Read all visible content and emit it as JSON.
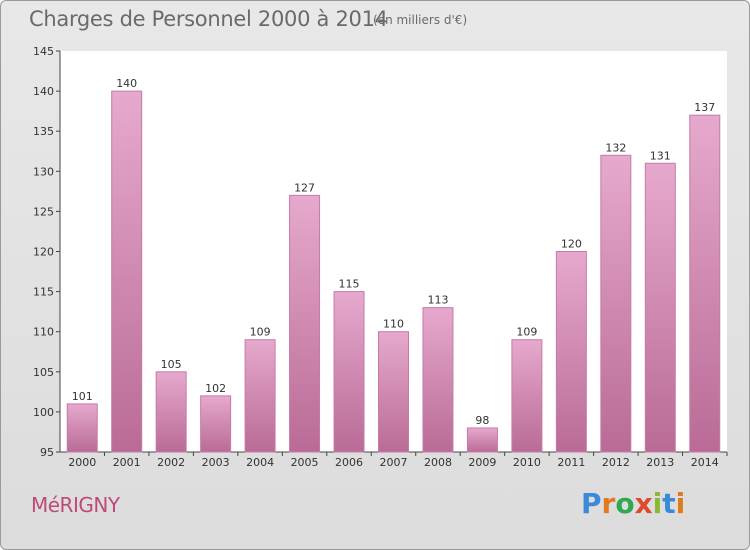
{
  "title": "Charges de Personnel 2000 à 2014",
  "subtitle": "(en milliers d'€)",
  "city": "MéRIGNY",
  "logo": {
    "letters": [
      "P",
      "r",
      "o",
      "x",
      "i",
      "t",
      "i"
    ],
    "colors": [
      "#3b8ad9",
      "#e07a1f",
      "#2fa84f",
      "#e04a2a",
      "#8ab82f",
      "#3b8ad9",
      "#e07a1f"
    ]
  },
  "colors": {
    "bar_fill_top": "#e6a9cd",
    "bar_fill_bottom": "#b96b96",
    "bar_stroke": "#c67ba6",
    "text": "#333333"
  },
  "chart_data": {
    "type": "bar",
    "categories": [
      "2000",
      "2001",
      "2002",
      "2003",
      "2004",
      "2005",
      "2006",
      "2007",
      "2008",
      "2009",
      "2010",
      "2011",
      "2012",
      "2013",
      "2014"
    ],
    "values": [
      101,
      140,
      105,
      102,
      109,
      127,
      115,
      110,
      113,
      98,
      109,
      120,
      132,
      131,
      137
    ],
    "data_labels": [
      "101",
      "140",
      "105",
      "102",
      "109",
      "127",
      "115",
      "110",
      "113",
      "98",
      "109",
      "120",
      "132",
      "131",
      "137"
    ],
    "yticks": [
      "95",
      "100",
      "105",
      "110",
      "115",
      "120",
      "125",
      "130",
      "135",
      "140",
      "145"
    ],
    "ylim": [
      95,
      145
    ],
    "grid": false
  }
}
